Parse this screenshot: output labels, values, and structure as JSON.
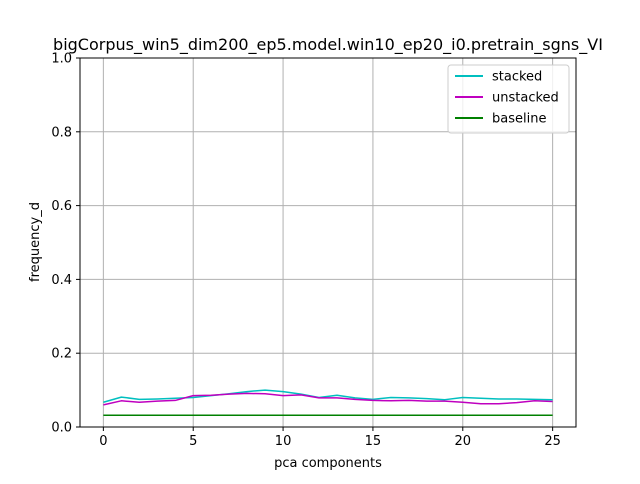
{
  "chart_data": {
    "type": "line",
    "title": "bigCorpus_win5_dim200_ep5.model.win10_ep20_i0.pretrain_sgns_VI",
    "xlabel": "pca components",
    "ylabel": "frequency_d",
    "xlim": [
      -1.3,
      26.3
    ],
    "ylim": [
      0,
      1.0
    ],
    "xticks": [
      0,
      5,
      10,
      15,
      20,
      25
    ],
    "yticks": [
      0.0,
      0.2,
      0.4,
      0.6,
      0.8,
      1.0
    ],
    "ytick_labels": [
      "0.0",
      "0.2",
      "0.4",
      "0.6",
      "0.8",
      "1.0"
    ],
    "grid": true,
    "legend_position": "top-right",
    "x": [
      0,
      1,
      2,
      3,
      4,
      5,
      6,
      7,
      8,
      9,
      10,
      11,
      12,
      13,
      14,
      15,
      16,
      17,
      18,
      19,
      20,
      21,
      22,
      23,
      24,
      25
    ],
    "series": [
      {
        "name": "stacked",
        "color": "#00bfbf",
        "values": [
          0.067,
          0.081,
          0.075,
          0.076,
          0.078,
          0.08,
          0.085,
          0.09,
          0.096,
          0.1,
          0.096,
          0.089,
          0.08,
          0.086,
          0.079,
          0.075,
          0.08,
          0.079,
          0.077,
          0.074,
          0.08,
          0.078,
          0.076,
          0.076,
          0.075,
          0.074
        ]
      },
      {
        "name": "unstacked",
        "color": "#bf00bf",
        "values": [
          0.06,
          0.071,
          0.067,
          0.07,
          0.072,
          0.085,
          0.086,
          0.089,
          0.091,
          0.09,
          0.085,
          0.087,
          0.079,
          0.079,
          0.075,
          0.072,
          0.071,
          0.072,
          0.07,
          0.07,
          0.067,
          0.063,
          0.063,
          0.066,
          0.071,
          0.069
        ]
      },
      {
        "name": "baseline",
        "color": "#008000",
        "values": [
          0.032,
          0.032,
          0.032,
          0.032,
          0.032,
          0.032,
          0.032,
          0.032,
          0.032,
          0.032,
          0.032,
          0.032,
          0.032,
          0.032,
          0.032,
          0.032,
          0.032,
          0.032,
          0.032,
          0.032,
          0.032,
          0.032,
          0.032,
          0.032,
          0.032,
          0.032
        ]
      }
    ]
  }
}
